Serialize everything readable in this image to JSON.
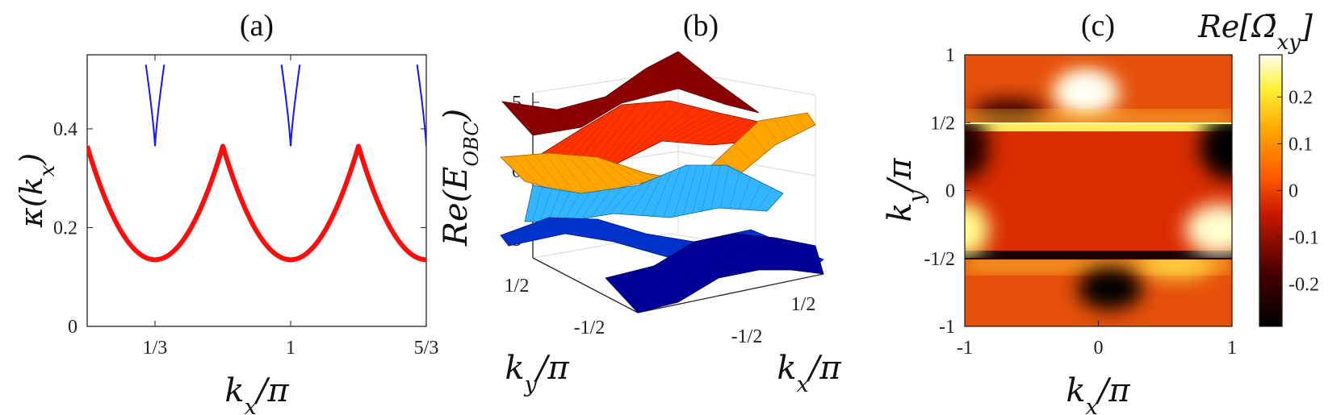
{
  "chart_data": [
    {
      "type": "line",
      "panel_label": "(a)",
      "xlabel": "k_x/π",
      "ylabel": "κ(k_x)",
      "xlim": [
        0,
        1.6667
      ],
      "ylim": [
        0,
        0.55
      ],
      "xticks": [
        0.3333,
        1.0,
        1.6667
      ],
      "xtick_labels": [
        "1/3",
        "1",
        "5/3"
      ],
      "yticks": [
        0,
        0.2,
        0.4
      ],
      "ytick_labels": [
        "0",
        "0.2",
        "0.4"
      ],
      "series": [
        {
          "color": "#ff0000",
          "kind": "thick",
          "shape": "cusps at 1/3, 1, 5/3 (κ≈0.365), minima ≈0.135 at 0, 2/3, 4/3, 2"
        },
        {
          "color": "#0000ff",
          "kind": "thin",
          "shape": "V-shaped branches above each cusp up to κ≈0.53"
        }
      ],
      "cusps": [
        0.3333,
        1.0,
        1.6667
      ],
      "cusp_value": 0.365,
      "min_value": 0.135,
      "top_value": 0.53
    },
    {
      "type": "surface3d",
      "panel_label": "(b)",
      "zlabel": "Re(E_OBC)",
      "xlabel": "k_x/π",
      "ylabel": "k_y/π",
      "zticks": [
        5,
        0,
        -5
      ],
      "ztick_labels": [
        "5",
        "0",
        "-5"
      ],
      "xtick_labels": [
        "-1/2",
        "1/2"
      ],
      "ytick_labels": [
        "1/2",
        "-1/2"
      ],
      "band_colors": [
        "#8b0000",
        "#ff3300",
        "#ffa500",
        "#0033cc",
        "#33b5ff",
        "#000099"
      ]
    },
    {
      "type": "heatmap",
      "panel_label": "(c)",
      "colorbar_title": "Re[Ω̄_xy]",
      "xlabel": "k_x/π",
      "ylabel": "k_y/π",
      "xlim": [
        -1,
        1
      ],
      "ylim": [
        -1,
        1
      ],
      "xtick_labels": [
        "-1",
        "0",
        "1"
      ],
      "ytick_labels": [
        "1",
        "1/2",
        "0",
        "-1/2",
        "-1"
      ],
      "colorbar_ticks": [
        0.2,
        0.1,
        0,
        -0.1,
        -0.2
      ],
      "colorbar_tick_labels": [
        "0.2",
        "0.1",
        "0",
        "-0.1",
        "-0.2"
      ],
      "clim": [
        -0.29,
        0.29
      ],
      "features": [
        {
          "kx": -0.1,
          "ky": 0.72,
          "value": 0.28
        },
        {
          "kx": 0.1,
          "ky": -0.72,
          "value": -0.28
        },
        {
          "kx": -0.4,
          "ky": 0.8,
          "value": -0.25
        },
        {
          "kx": 0.45,
          "ky": -0.75,
          "value": 0.22
        },
        {
          "kx": 0.95,
          "ky": 0.3,
          "value": -0.27
        },
        {
          "kx": -0.95,
          "ky": 0.3,
          "value": -0.25
        },
        {
          "kx": 0.95,
          "ky": -0.3,
          "value": 0.26
        },
        {
          "kx": -0.95,
          "ky": -0.3,
          "value": 0.24
        }
      ],
      "boundaries_ky": [
        0.5,
        -0.5
      ]
    }
  ]
}
